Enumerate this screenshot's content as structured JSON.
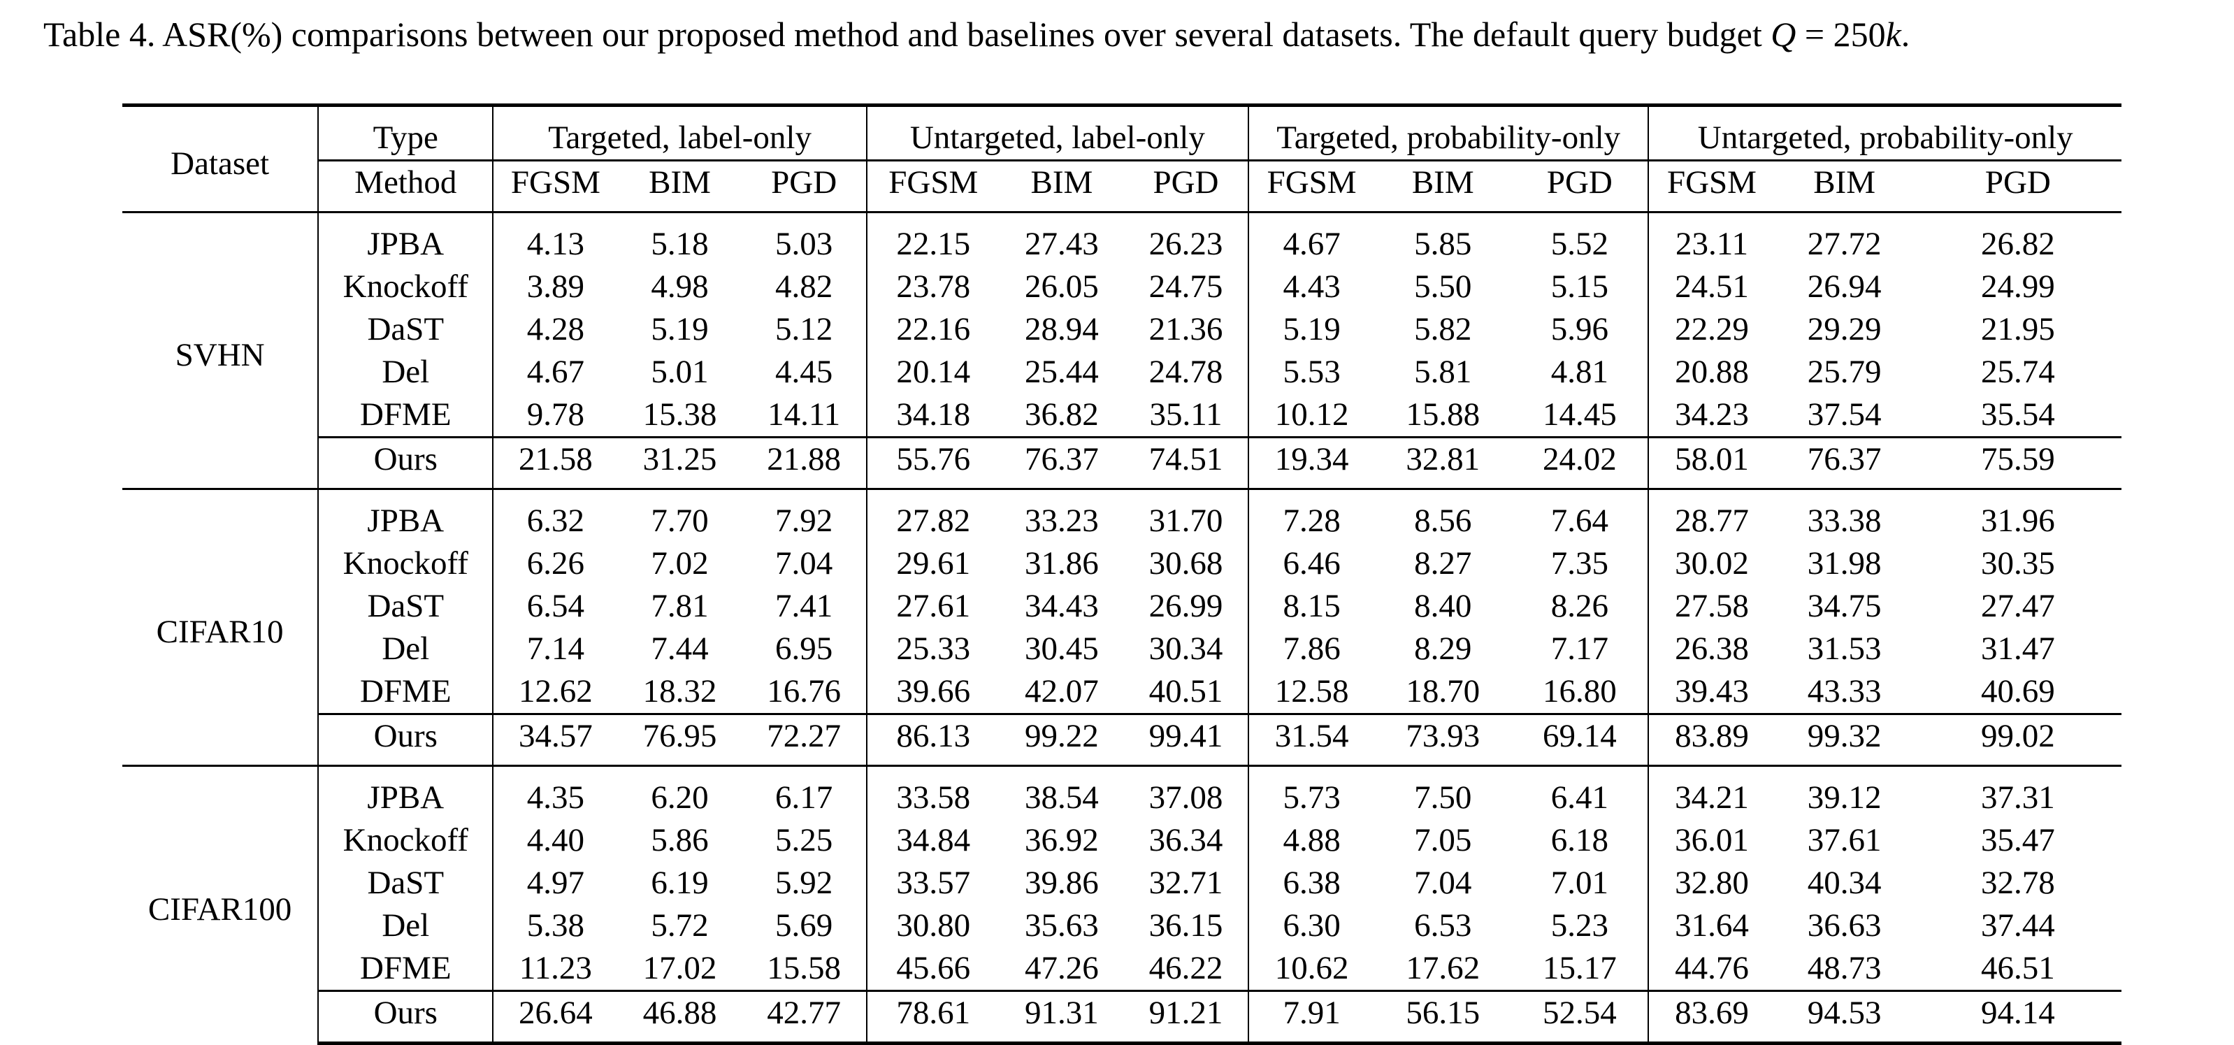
{
  "caption": {
    "prefix": "Table 4. ASR(%) comparisons between our proposed method and baselines over several datasets. The default query budget ",
    "math_var": "Q",
    "math_rest": " = 250",
    "math_unit": "k",
    "suffix": "."
  },
  "table": {
    "header": {
      "dataset": "Dataset",
      "type": "Type",
      "method": "Method",
      "groups": [
        "Targeted, label-only",
        "Untargeted, label-only",
        "Targeted, probability-only",
        "Untargeted, probability-only"
      ],
      "attacks": [
        "FGSM",
        "BIM",
        "PGD",
        "FGSM",
        "BIM",
        "PGD",
        "FGSM",
        "BIM",
        "PGD",
        "FGSM",
        "BIM",
        "PGD"
      ]
    },
    "datasets": [
      {
        "name": "SVHN",
        "rows": [
          {
            "method": "JPBA",
            "values": [
              "4.13",
              "5.18",
              "5.03",
              "22.15",
              "27.43",
              "26.23",
              "4.67",
              "5.85",
              "5.52",
              "23.11",
              "27.72",
              "26.82"
            ]
          },
          {
            "method": "Knockoff",
            "values": [
              "3.89",
              "4.98",
              "4.82",
              "23.78",
              "26.05",
              "24.75",
              "4.43",
              "5.50",
              "5.15",
              "24.51",
              "26.94",
              "24.99"
            ]
          },
          {
            "method": "DaST",
            "values": [
              "4.28",
              "5.19",
              "5.12",
              "22.16",
              "28.94",
              "21.36",
              "5.19",
              "5.82",
              "5.96",
              "22.29",
              "29.29",
              "21.95"
            ]
          },
          {
            "method": "Del",
            "values": [
              "4.67",
              "5.01",
              "4.45",
              "20.14",
              "25.44",
              "24.78",
              "5.53",
              "5.81",
              "4.81",
              "20.88",
              "25.79",
              "25.74"
            ]
          },
          {
            "method": "DFME",
            "values": [
              "9.78",
              "15.38",
              "14.11",
              "34.18",
              "36.82",
              "35.11",
              "10.12",
              "15.88",
              "14.45",
              "34.23",
              "37.54",
              "35.54"
            ]
          },
          {
            "method": "Ours",
            "values": [
              "21.58",
              "31.25",
              "21.88",
              "55.76",
              "76.37",
              "74.51",
              "19.34",
              "32.81",
              "24.02",
              "58.01",
              "76.37",
              "75.59"
            ]
          }
        ]
      },
      {
        "name": "CIFAR10",
        "rows": [
          {
            "method": "JPBA",
            "values": [
              "6.32",
              "7.70",
              "7.92",
              "27.82",
              "33.23",
              "31.70",
              "7.28",
              "8.56",
              "7.64",
              "28.77",
              "33.38",
              "31.96"
            ]
          },
          {
            "method": "Knockoff",
            "values": [
              "6.26",
              "7.02",
              "7.04",
              "29.61",
              "31.86",
              "30.68",
              "6.46",
              "8.27",
              "7.35",
              "30.02",
              "31.98",
              "30.35"
            ]
          },
          {
            "method": "DaST",
            "values": [
              "6.54",
              "7.81",
              "7.41",
              "27.61",
              "34.43",
              "26.99",
              "8.15",
              "8.40",
              "8.26",
              "27.58",
              "34.75",
              "27.47"
            ]
          },
          {
            "method": "Del",
            "values": [
              "7.14",
              "7.44",
              "6.95",
              "25.33",
              "30.45",
              "30.34",
              "7.86",
              "8.29",
              "7.17",
              "26.38",
              "31.53",
              "31.47"
            ]
          },
          {
            "method": "DFME",
            "values": [
              "12.62",
              "18.32",
              "16.76",
              "39.66",
              "42.07",
              "40.51",
              "12.58",
              "18.70",
              "16.80",
              "39.43",
              "43.33",
              "40.69"
            ]
          },
          {
            "method": "Ours",
            "values": [
              "34.57",
              "76.95",
              "72.27",
              "86.13",
              "99.22",
              "99.41",
              "31.54",
              "73.93",
              "69.14",
              "83.89",
              "99.32",
              "99.02"
            ]
          }
        ]
      },
      {
        "name": "CIFAR100",
        "rows": [
          {
            "method": "JPBA",
            "values": [
              "4.35",
              "6.20",
              "6.17",
              "33.58",
              "38.54",
              "37.08",
              "5.73",
              "7.50",
              "6.41",
              "34.21",
              "39.12",
              "37.31"
            ]
          },
          {
            "method": "Knockoff",
            "values": [
              "4.40",
              "5.86",
              "5.25",
              "34.84",
              "36.92",
              "36.34",
              "4.88",
              "7.05",
              "6.18",
              "36.01",
              "37.61",
              "35.47"
            ]
          },
          {
            "method": "DaST",
            "values": [
              "4.97",
              "6.19",
              "5.92",
              "33.57",
              "39.86",
              "32.71",
              "6.38",
              "7.04",
              "7.01",
              "32.80",
              "40.34",
              "32.78"
            ]
          },
          {
            "method": "Del",
            "values": [
              "5.38",
              "5.72",
              "5.69",
              "30.80",
              "35.63",
              "36.15",
              "6.30",
              "6.53",
              "5.23",
              "31.64",
              "36.63",
              "37.44"
            ]
          },
          {
            "method": "DFME",
            "values": [
              "11.23",
              "17.02",
              "15.58",
              "45.66",
              "47.26",
              "46.22",
              "10.62",
              "17.62",
              "15.17",
              "44.76",
              "48.73",
              "46.51"
            ]
          },
          {
            "method": "Ours",
            "values": [
              "26.64",
              "46.88",
              "42.77",
              "78.61",
              "91.31",
              "91.21",
              "7.91",
              "56.15",
              "52.54",
              "83.69",
              "94.53",
              "94.14"
            ]
          }
        ]
      }
    ]
  }
}
